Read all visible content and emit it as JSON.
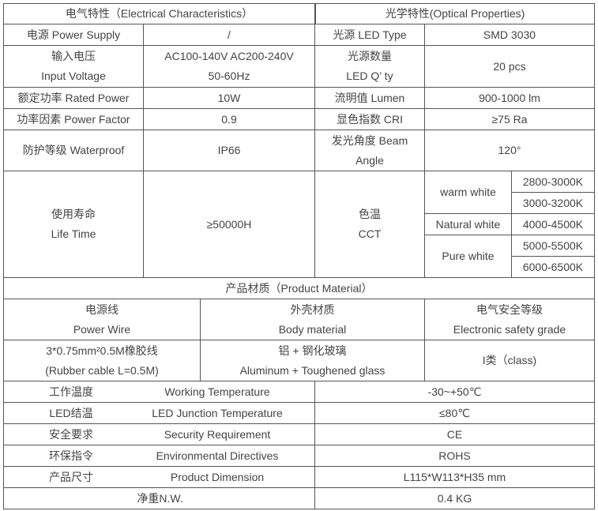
{
  "electrical": {
    "title": "电气特性（Electrical Characteristics）",
    "power_supply": {
      "label": "电源  Power Supply",
      "value": "/"
    },
    "input_voltage": {
      "label_cn": "输入电压",
      "label_en": "Input Voltage",
      "value_1": "AC100-140V AC200-240V",
      "value_2": "50-60Hz"
    },
    "rated_power": {
      "label": "额定功率    Rated Power",
      "value": "10W"
    },
    "power_factor": {
      "label": "功率因素   Power Factor",
      "value": "0.9"
    },
    "waterproof": {
      "label": "防护等级     Waterproof",
      "value": "IP66"
    },
    "life_time": {
      "label_cn": "使用寿命",
      "label_en": "Life Time",
      "value": "≥50000H"
    }
  },
  "optical": {
    "title": "光学特性(Optical Properties)",
    "led_type": {
      "label": "光源  LED Type",
      "value": "SMD 3030"
    },
    "led_qty": {
      "label_cn": "光源数量",
      "label_en": "LED Q’ ty",
      "value": "20 pcs"
    },
    "lumen": {
      "label": "流明值    Lumen",
      "value": "900-1000 lm"
    },
    "cri": {
      "label": "显色指数     CRI",
      "value": "≥75 Ra"
    },
    "beam_angle": {
      "label_1": "发光角度   Beam",
      "label_2": "Angle",
      "value": "120°"
    },
    "cct": {
      "label_cn": "色温",
      "label_en": "CCT",
      "warm": {
        "name": "warm white",
        "range_1": "2800-3000K",
        "range_2": "3000-3200K"
      },
      "natural": {
        "name": "Natural white",
        "range_1": "4000-4500K"
      },
      "pure": {
        "name": "Pure white",
        "range_1": "5000-5500K",
        "range_2": "6000-6500K"
      }
    }
  },
  "material": {
    "title": "产品材质（Product Material）",
    "wire": {
      "label_cn": "电源线",
      "label_en": "Power Wire",
      "value_1": "3*0.75mm²0.5M橡胶线",
      "value_2": "(Rubber cable L=0.5M)"
    },
    "body": {
      "label_cn": "外壳材质",
      "label_en": "Body material",
      "value_1": "铝 + 钢化玻璃",
      "value_2": "Aluminum + Toughened glass"
    },
    "safety": {
      "label_cn": "电气安全等级",
      "label_en": "Electronic safety grade",
      "value": "I类（class)"
    }
  },
  "other": [
    {
      "cn": "工作温度",
      "en": "Working Temperature",
      "value": "-30~+50℃"
    },
    {
      "cn": "LED结温",
      "en": "LED Junction Temperature",
      "value": "≤80℃"
    },
    {
      "cn": "安全要求",
      "en": "Security Requirement",
      "value": "CE"
    },
    {
      "cn": "环保指令",
      "en": "Environmental Directives",
      "value": "ROHS"
    },
    {
      "cn": "产品尺寸",
      "en": "Product Dimension",
      "value": "L115*W113*H35 mm"
    },
    {
      "cn": "净重N.W.",
      "en": "",
      "value": "0.4 KG"
    }
  ]
}
